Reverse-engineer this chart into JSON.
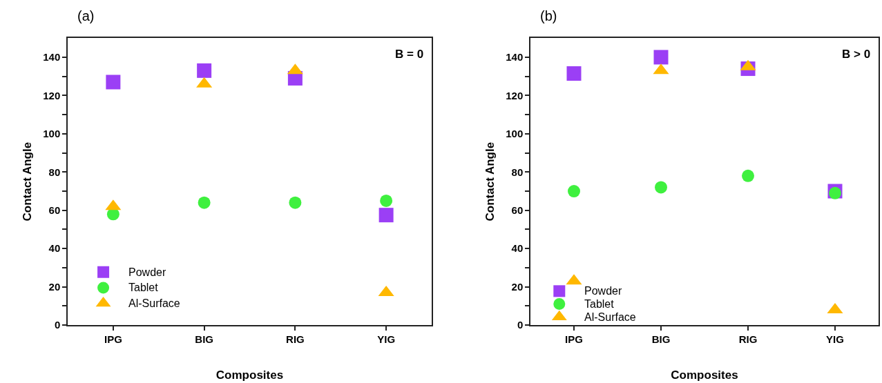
{
  "chart_data": [
    {
      "type": "scatter",
      "title": "(a)",
      "xlabel": "Composites",
      "ylabel": "Contact Angle",
      "annotations": [
        "B = 0"
      ],
      "categories": [
        "IPG",
        "BIG",
        "RIG",
        "YIG"
      ],
      "series": [
        {
          "name": "Powder",
          "color": "#9b3ff5",
          "marker": "square",
          "values": [
            127,
            133,
            129,
            57.5
          ]
        },
        {
          "name": "Tablet",
          "color": "#3ff03f",
          "marker": "circle",
          "values": [
            58,
            64,
            64,
            65
          ]
        },
        {
          "name": "Al-Surface",
          "color": "#ffb800",
          "marker": "triangle",
          "values": [
            62,
            126,
            133,
            17
          ]
        }
      ],
      "ylim": [
        0,
        150
      ],
      "yticks": [
        0,
        {
          "value": 10,
          "label": null
        },
        20,
        {
          "value": 30,
          "label": null
        },
        40,
        {
          "value": 50,
          "label": null
        },
        60,
        {
          "value": 70,
          "label": null
        },
        80,
        {
          "value": 90,
          "label": null
        },
        100,
        {
          "value": 110,
          "label": null
        },
        120,
        {
          "value": 130,
          "label": null
        },
        140
      ],
      "legend": "bottom left"
    },
    {
      "type": "scatter",
      "title": "(b)",
      "xlabel": "Composites",
      "ylabel": "Contact Angle",
      "annotations": [
        "B > 0"
      ],
      "categories": [
        "IPG",
        "BIG",
        "RIG",
        "YIG"
      ],
      "series": [
        {
          "name": "Powder",
          "color": "#9b3ff5",
          "marker": "square",
          "values": [
            131.5,
            140,
            134,
            70
          ]
        },
        {
          "name": "Tablet",
          "color": "#3ff03f",
          "marker": "circle",
          "values": [
            70,
            72,
            78,
            69
          ]
        },
        {
          "name": "Al-Surface",
          "color": "#ffb800",
          "marker": "triangle",
          "values": [
            23,
            133,
            135,
            8
          ]
        }
      ],
      "ylim": [
        0,
        150
      ],
      "yticks": [
        0,
        {
          "value": 10,
          "label": null
        },
        20,
        {
          "value": 30,
          "label": null
        },
        40,
        {
          "value": 50,
          "label": null
        },
        60,
        {
          "value": 70,
          "label": null
        },
        80,
        {
          "value": 90,
          "label": null
        },
        100,
        {
          "value": 110,
          "label": null
        },
        120,
        {
          "value": 130,
          "label": null
        },
        140
      ],
      "legend": "bottom left"
    }
  ]
}
